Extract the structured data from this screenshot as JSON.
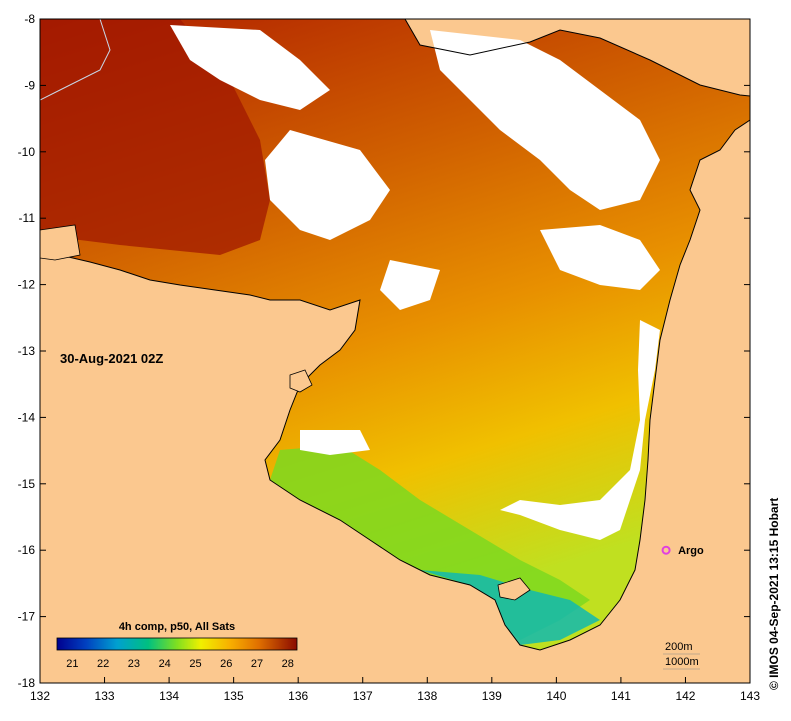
{
  "map": {
    "date_label": "30-Aug-2021 02Z",
    "credit": "© IMOS 04-Sep-2021 13:15 Hobart",
    "x_ticks": [
      "132",
      "133",
      "134",
      "135",
      "136",
      "137",
      "138",
      "139",
      "140",
      "141",
      "142",
      "143"
    ],
    "y_ticks": [
      "-8",
      "-9",
      "-10",
      "-11",
      "-12",
      "-13",
      "-14",
      "-15",
      "-16",
      "-17",
      "-18"
    ],
    "lon_range": [
      132,
      143
    ],
    "lat_range": [
      -18,
      -8
    ],
    "argo": {
      "label": "Argo",
      "lon": 141.7,
      "lat": -16.0,
      "color": "#e040e0"
    },
    "contours": {
      "line1": "200m",
      "line2": "1000m"
    },
    "colorbar": {
      "title": "4h comp, p50, All Sats",
      "labels": [
        "21",
        "22",
        "23",
        "24",
        "25",
        "26",
        "27",
        "28"
      ],
      "range": [
        20.5,
        28.3
      ]
    },
    "colors": {
      "land": "#fbc88f",
      "cloud": "#ffffff",
      "coast": "#000000"
    }
  }
}
